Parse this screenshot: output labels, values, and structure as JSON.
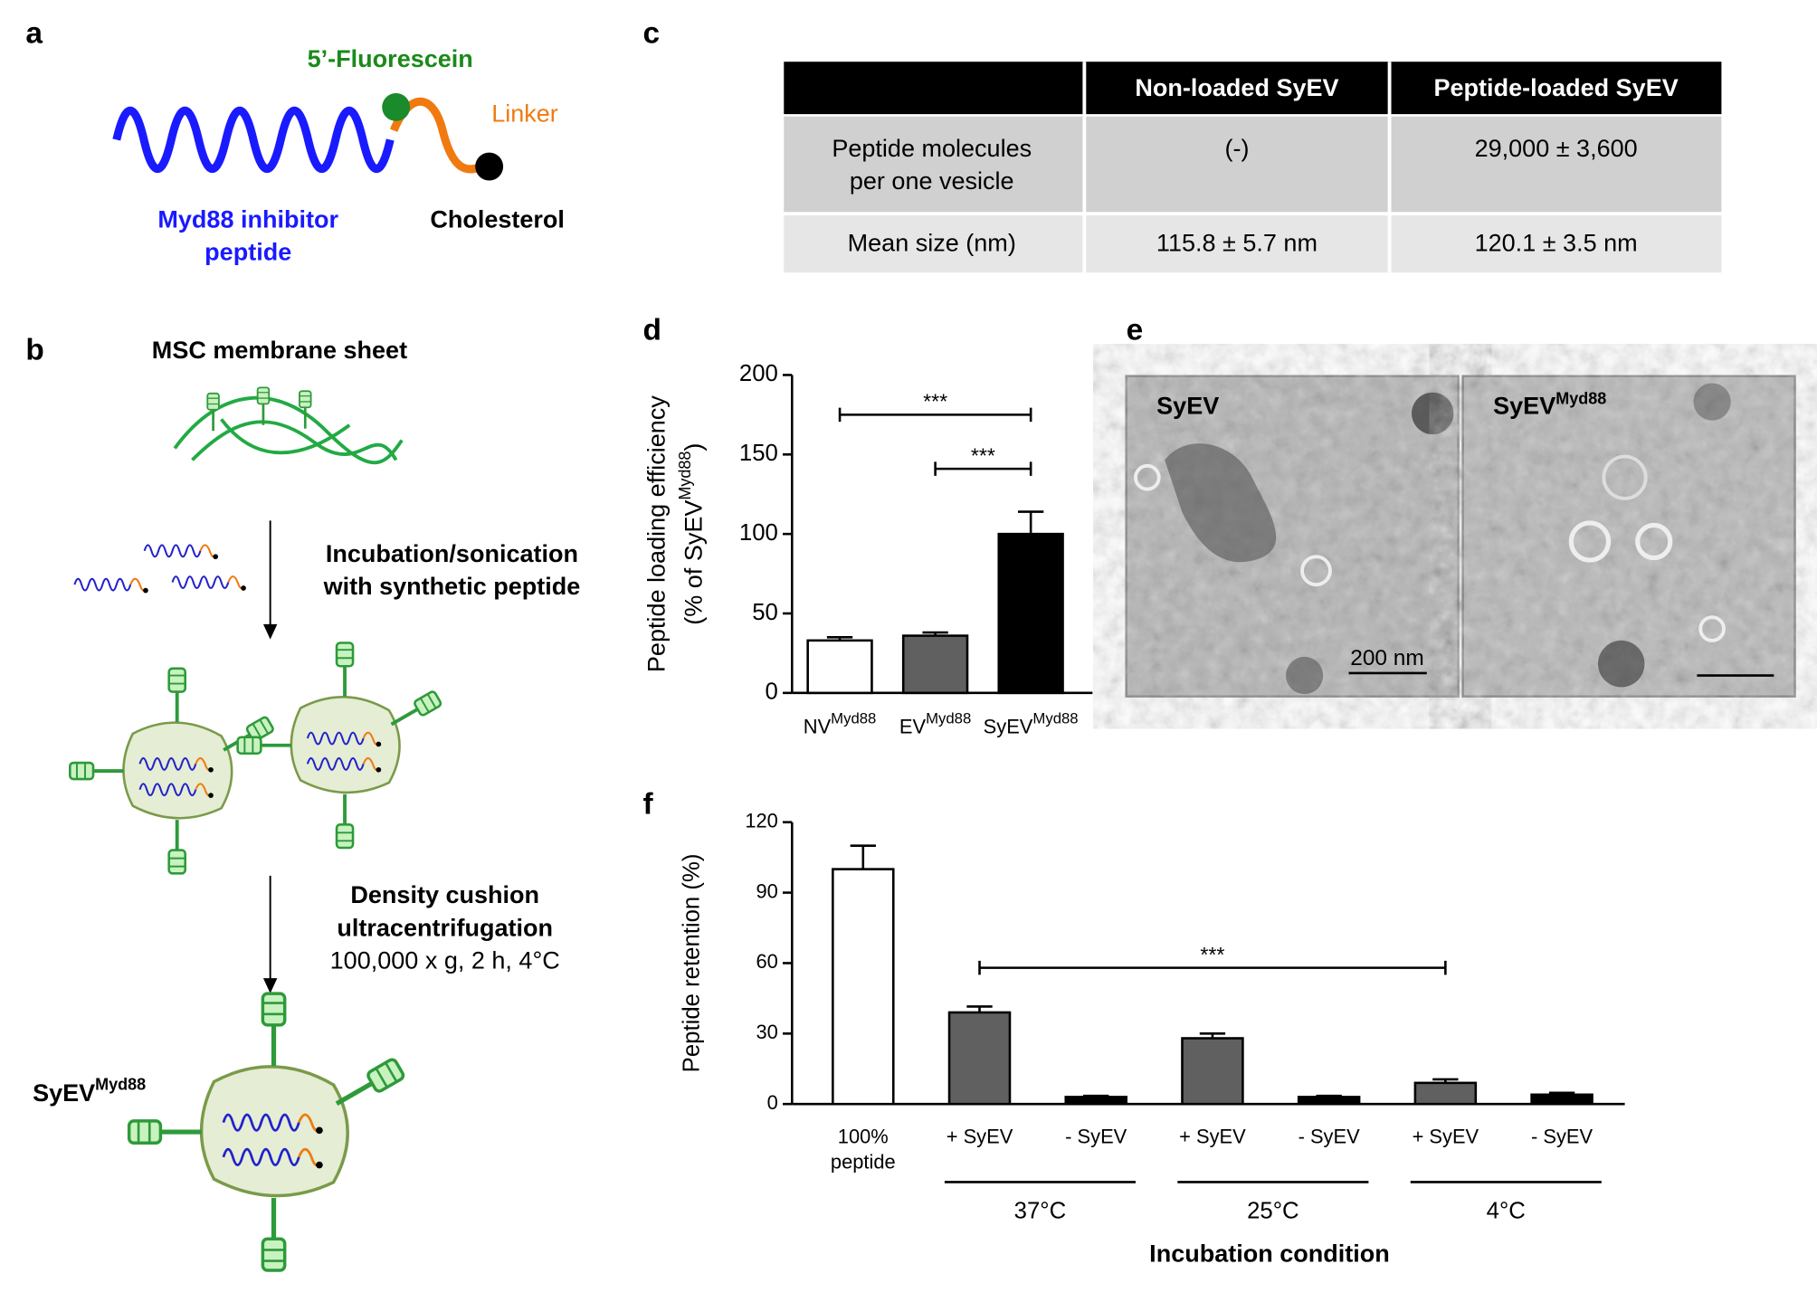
{
  "panel_labels": [
    "a",
    "b",
    "c",
    "d",
    "e",
    "f"
  ],
  "panel_a": {
    "fluorescein": "5’-Fluorescein",
    "linker": "Linker",
    "peptide": [
      "Myd88 inhibitor",
      "peptide"
    ],
    "cholesterol": "Cholesterol"
  },
  "panel_b": {
    "sheet": "MSC membrane sheet",
    "step1": [
      "Incubation/sonication",
      "with synthetic peptide"
    ],
    "step2": [
      "Density cushion",
      "ultracentrifugation",
      "100,000 x g, 2 h, 4°C"
    ],
    "product": {
      "base": "SyEV",
      "sup": "Myd88"
    }
  },
  "table": {
    "header": [
      "Non-loaded SyEV",
      "Peptide-loaded SyEV"
    ],
    "rows": [
      [
        [
          "Peptide molecules",
          "per one vesicle"
        ],
        "(-)",
        "29,000 ± 3,600"
      ],
      [
        "Mean size (nm)",
        "115.8 ± 5.7 nm",
        "120.1 ± 3.5 nm"
      ]
    ]
  },
  "panel_e": {
    "images": [
      {
        "label": {
          "base": "SyEV"
        },
        "scale": "200 nm"
      },
      {
        "label": {
          "base": "SyEV",
          "sup": "Myd88"
        }
      }
    ]
  },
  "chart_data": [
    {
      "type": "bar",
      "ylabel": "Peptide loading efficiency",
      "ylabel2": {
        "prefix": "(% of SyEV",
        "sup": "Myd88",
        "suffix": ")"
      },
      "categories": [
        {
          "base": "NV",
          "sup": "Myd88"
        },
        {
          "base": "EV",
          "sup": "Myd88"
        },
        {
          "base": "SyEV",
          "sup": "Myd88"
        }
      ],
      "values": [
        33,
        36,
        100
      ],
      "errors": [
        2,
        2,
        14
      ],
      "colors": [
        "#ffffff",
        "#606060",
        "#000000"
      ],
      "ylim": [
        0,
        200
      ],
      "yticks": [
        0,
        50,
        100,
        150,
        200
      ],
      "annotations": [
        {
          "text": "***",
          "from": 0,
          "to": 2,
          "y": 175
        },
        {
          "text": "***",
          "from": 1,
          "to": 2,
          "y": 141
        }
      ]
    },
    {
      "type": "bar",
      "ylabel": "Peptide retention (%)",
      "xlabel": "Incubation condition",
      "categories": [
        [
          "100%",
          "peptide"
        ],
        "+ SyEV",
        "- SyEV",
        "+ SyEV",
        "- SyEV",
        "+ SyEV",
        "- SyEV"
      ],
      "values": [
        100,
        39,
        3,
        28,
        3,
        9,
        4
      ],
      "errors": [
        10,
        2.5,
        0.5,
        2,
        0.5,
        1.5,
        0.8
      ],
      "colors": [
        "#ffffff",
        "#606060",
        "#000000",
        "#606060",
        "#000000",
        "#606060",
        "#000000"
      ],
      "ylim": [
        0,
        120
      ],
      "yticks": [
        0,
        30,
        60,
        90,
        120
      ],
      "groups": [
        {
          "label": "37°C",
          "from": 1,
          "to": 2
        },
        {
          "label": "25°C",
          "from": 3,
          "to": 4
        },
        {
          "label": "4°C",
          "from": 5,
          "to": 6
        }
      ],
      "annotations": [
        {
          "text": "***",
          "from": 1,
          "to": 5,
          "y": 58
        }
      ]
    }
  ]
}
